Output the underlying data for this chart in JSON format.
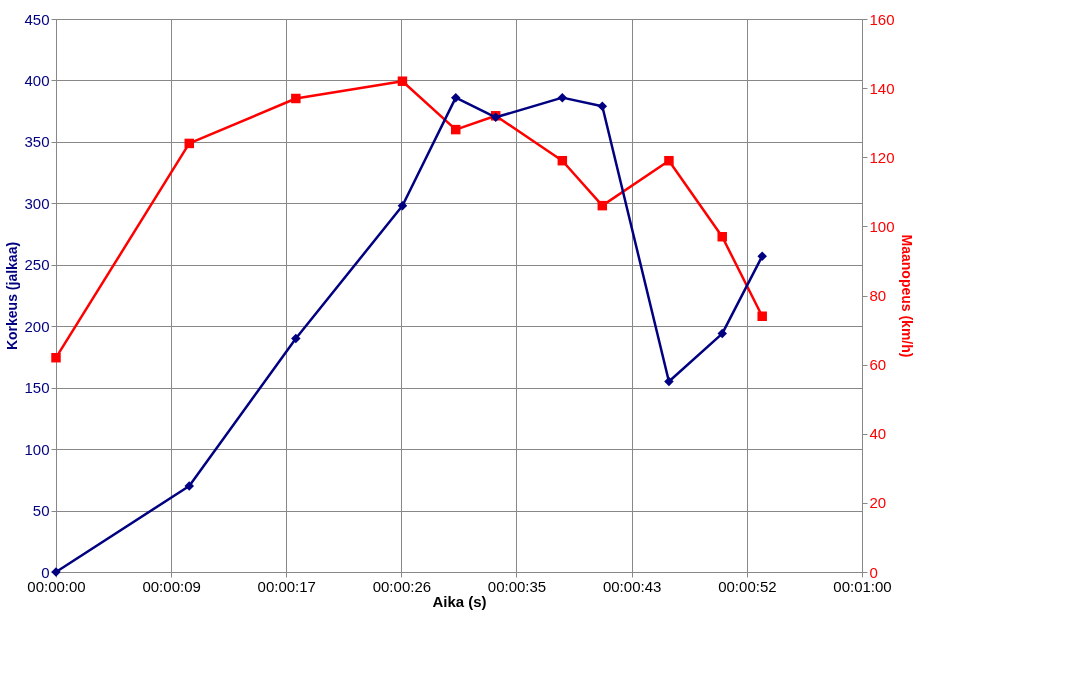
{
  "chart_data": {
    "type": "line",
    "xlabel": "Aika (s)",
    "ylabel": "Korkeus (jalkaa)",
    "y2label": "Maanopeus (km/h)",
    "x": [
      0,
      10,
      18,
      26,
      30,
      33,
      38,
      41,
      46,
      50,
      53
    ],
    "series": [
      {
        "color": "#000080",
        "marker": "diamond",
        "values": [
          0,
          70,
          190,
          298,
          386,
          370,
          386,
          379,
          155,
          194,
          257
        ]
      },
      {
        "color": "#ff0000",
        "marker": "square",
        "axis": "y2",
        "values": [
          62,
          124,
          137,
          142,
          128,
          132,
          119,
          106,
          119,
          97,
          74
        ]
      }
    ],
    "xlim": [
      0,
      60.49
    ],
    "xticks": [
      {
        "value": 0,
        "label": "00:00:00"
      },
      {
        "value": 8.64,
        "label": "00:00:09"
      },
      {
        "value": 17.28,
        "label": "00:00:17"
      },
      {
        "value": 25.92,
        "label": "00:00:26"
      },
      {
        "value": 34.56,
        "label": "00:00:35"
      },
      {
        "value": 43.2,
        "label": "00:00:43"
      },
      {
        "value": 51.85,
        "label": "00:00:52"
      },
      {
        "value": 60.49,
        "label": "00:01:00"
      }
    ],
    "ylim": [
      0,
      450
    ],
    "yticks": [
      0,
      50,
      100,
      150,
      200,
      250,
      300,
      350,
      400,
      450
    ],
    "y2lim": [
      0,
      160
    ],
    "y2ticks": [
      0,
      20,
      40,
      60,
      80,
      100,
      120,
      140,
      160
    ],
    "grid": true,
    "line_style": "solid"
  }
}
